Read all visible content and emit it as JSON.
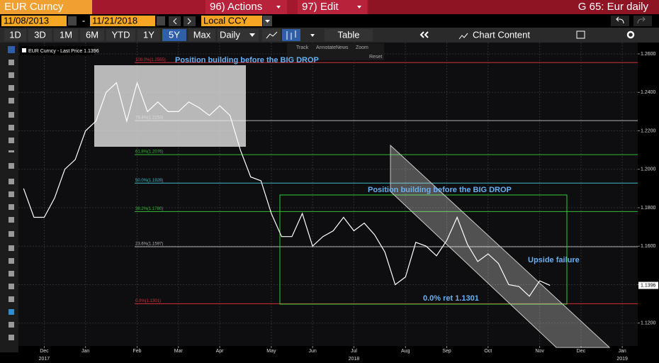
{
  "header": {
    "ticker": "EUR Curncy",
    "actions": "96) Actions",
    "edit": "97) Edit",
    "page": "G 65: Eur daily",
    "start_date": "11/08/2013",
    "date_separator": "-",
    "end_date": "11/21/2018",
    "currency": "Local CCY"
  },
  "toolbar": {
    "ranges": [
      "1D",
      "3D",
      "1M",
      "6M",
      "YTD",
      "1Y",
      "5Y",
      "Max"
    ],
    "selected_range": "5Y",
    "frequency": "Daily",
    "table": "Table",
    "chart_content": "Chart Content"
  },
  "chart_data": {
    "type": "line",
    "tools": [
      "Track",
      "Annotate",
      "News",
      "Zoom"
    ],
    "reset": "Reset",
    "categories": [
      null,
      null,
      "Dec",
      null,
      null,
      null,
      "Jan",
      null,
      null,
      null,
      null,
      "Feb",
      null,
      null,
      null,
      "Mar",
      null,
      null,
      null,
      "Apr",
      null,
      null,
      null,
      null,
      "May",
      null,
      null,
      null,
      "Jun",
      null,
      null,
      null,
      "Jul",
      null,
      null,
      null,
      null,
      "Aug",
      null,
      null,
      null,
      "Sep",
      null,
      null,
      null,
      "Oct",
      null,
      null,
      null,
      null,
      "Nov",
      null,
      null,
      null,
      "Dec",
      null,
      null,
      null,
      "Jan",
      null
    ],
    "year_labels": [
      "2017",
      "2018",
      "2019"
    ],
    "series": [
      {
        "name": "EUR Curncy - Last Price 1.1396",
        "color": "#ffffff",
        "values": [
          1.19,
          1.175,
          1.175,
          1.185,
          1.2,
          1.205,
          1.22,
          1.225,
          1.24,
          1.245,
          1.225,
          1.245,
          1.23,
          1.235,
          1.23,
          1.23,
          1.235,
          1.232,
          1.228,
          1.233,
          1.228,
          1.21,
          1.196,
          1.194,
          1.177,
          1.165,
          1.165,
          1.177,
          1.16,
          1.165,
          1.168,
          1.175,
          1.168,
          1.172,
          1.166,
          1.157,
          1.14,
          1.144,
          1.162,
          1.16,
          1.155,
          1.163,
          1.175,
          1.161,
          1.152,
          1.156,
          1.151,
          1.14,
          1.139,
          1.134,
          1.142,
          1.1396,
          null,
          null,
          null,
          null,
          null,
          null,
          null,
          null
        ]
      }
    ],
    "last_price": 1.1396,
    "ylim": [
      1.1081,
      1.2659
    ],
    "yticks": [
      {
        "value": 1.12,
        "label": "1.1200"
      },
      {
        "value": 1.14,
        "label": "1.1400"
      },
      {
        "value": 1.16,
        "label": "1.1600"
      },
      {
        "value": 1.18,
        "label": "1.1800"
      },
      {
        "value": 1.2,
        "label": "1.2000"
      },
      {
        "value": 1.22,
        "label": "1.2200"
      },
      {
        "value": 1.24,
        "label": "1.2400"
      },
      {
        "value": 1.26,
        "label": "1.2600"
      }
    ],
    "grid": true,
    "levels": [
      {
        "label": "100.0%(1.2555)",
        "value": 1.2555,
        "color": "#d0303a"
      },
      {
        "label": "76.4%(1.2253)",
        "value": 1.2253,
        "color": "#b0b0b0"
      },
      {
        "label": "61.8%(1.2076)",
        "value": 1.2076,
        "color": "#33bb33"
      },
      {
        "label": "50.0%(1.1928)",
        "value": 1.1928,
        "color": "#40b8c8"
      },
      {
        "label": "38.2%(1.1780)",
        "value": 1.178,
        "color": "#33bb33"
      },
      {
        "label": "23.6%(1.1597)",
        "value": 1.1597,
        "color": "#b0b0b0"
      },
      {
        "label": "0.0%(1.1301)",
        "value": 1.1301,
        "color": "#d0303a"
      }
    ],
    "annotations": [
      "Position building before the BIG DROP",
      "Position building before the BIG DROP",
      "Upside failure",
      "0.0% ret 1.1301"
    ]
  }
}
